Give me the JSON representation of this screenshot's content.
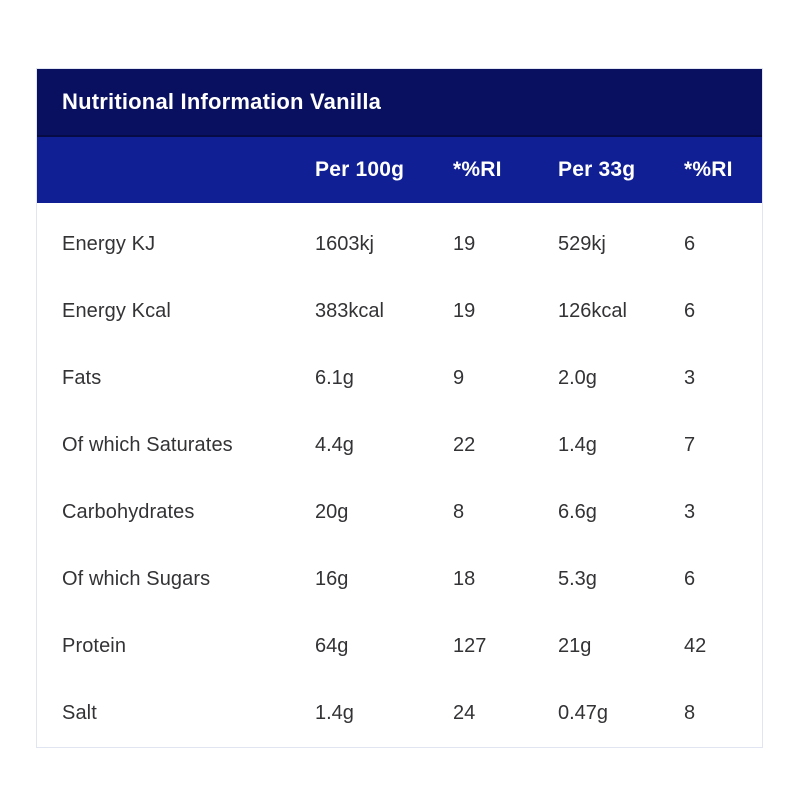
{
  "table": {
    "title": "Nutritional Information Vanilla",
    "header_cols": [
      "",
      "Per 100g",
      "*%RI",
      "Per 33g",
      "*%RI"
    ],
    "rows": [
      {
        "cells": [
          "Energy KJ",
          "1603kj",
          "19",
          "529kj",
          "6"
        ]
      },
      {
        "cells": [
          "Energy Kcal",
          "383kcal",
          "19",
          "126kcal",
          "6"
        ]
      },
      {
        "cells": [
          "Fats",
          "6.1g",
          "9",
          "2.0g",
          "3"
        ]
      },
      {
        "cells": [
          "Of which Saturates",
          "4.4g",
          "22",
          "1.4g",
          "7"
        ]
      },
      {
        "cells": [
          "Carbohydrates",
          "20g",
          "8",
          "6.6g",
          "3"
        ]
      },
      {
        "cells": [
          "Of which Sugars",
          "16g",
          "18",
          "5.3g",
          "6"
        ]
      },
      {
        "cells": [
          "Protein",
          "64g",
          "127",
          "21g",
          "42"
        ]
      },
      {
        "cells": [
          "Salt",
          "1.4g",
          "24",
          "0.47g",
          "8"
        ]
      }
    ]
  },
  "colors": {
    "title_bar": "#0A1060",
    "header_row": "#101F93",
    "body_text": "#333336"
  }
}
